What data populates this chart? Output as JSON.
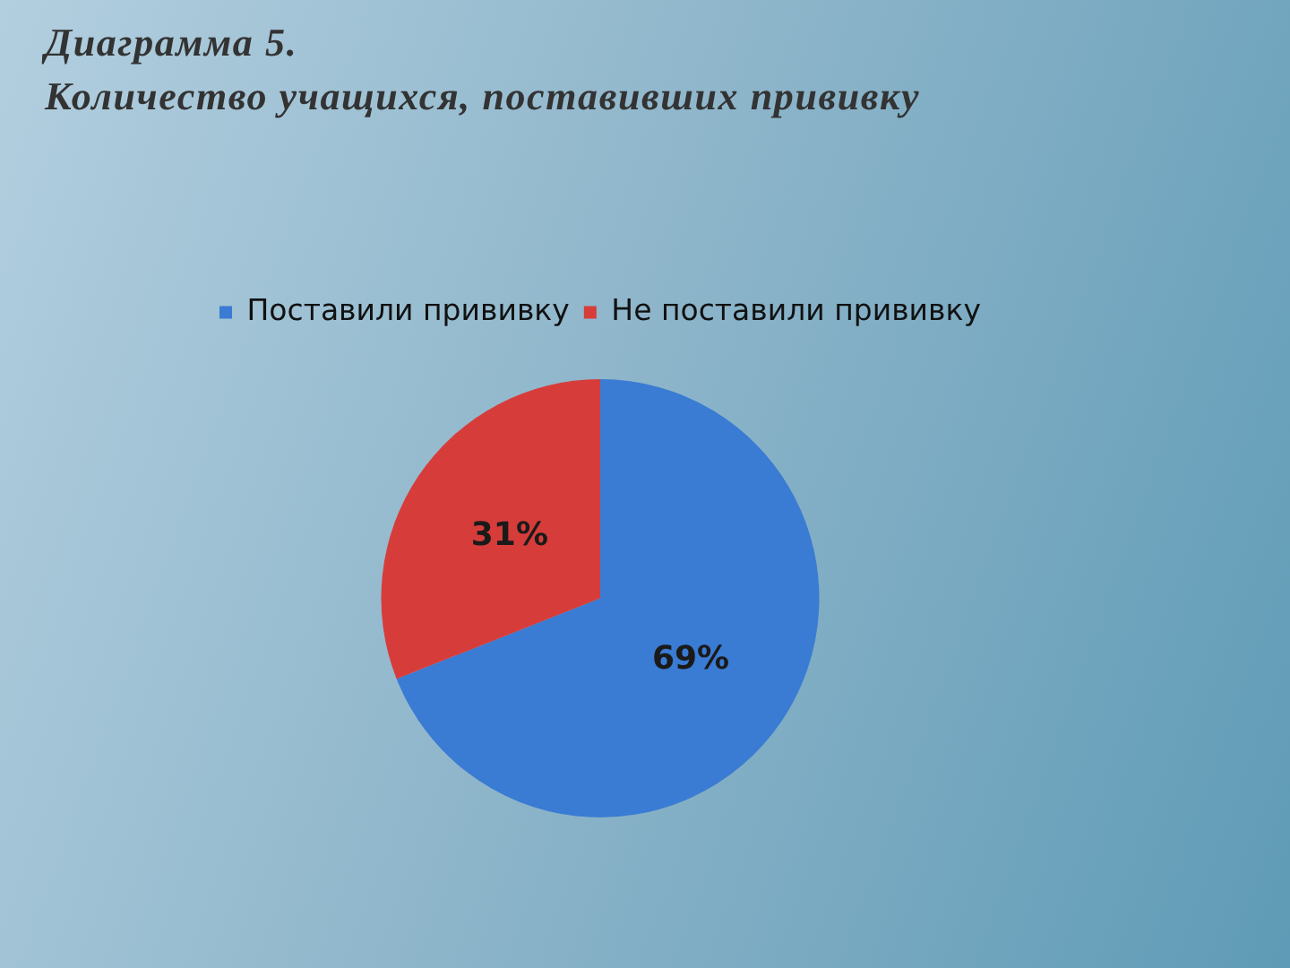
{
  "chart_data": {
    "type": "pie",
    "title": "Диаграмма 5.",
    "subtitle": "Количество учащихся, поставивших прививку",
    "categories": [
      "Поставили прививку",
      "Не поставили прививку"
    ],
    "values": [
      69,
      31
    ],
    "colors": [
      "#3a7bd3",
      "#d63d3a"
    ],
    "value_labels": [
      "69%",
      "31%"
    ],
    "legend": "top"
  }
}
